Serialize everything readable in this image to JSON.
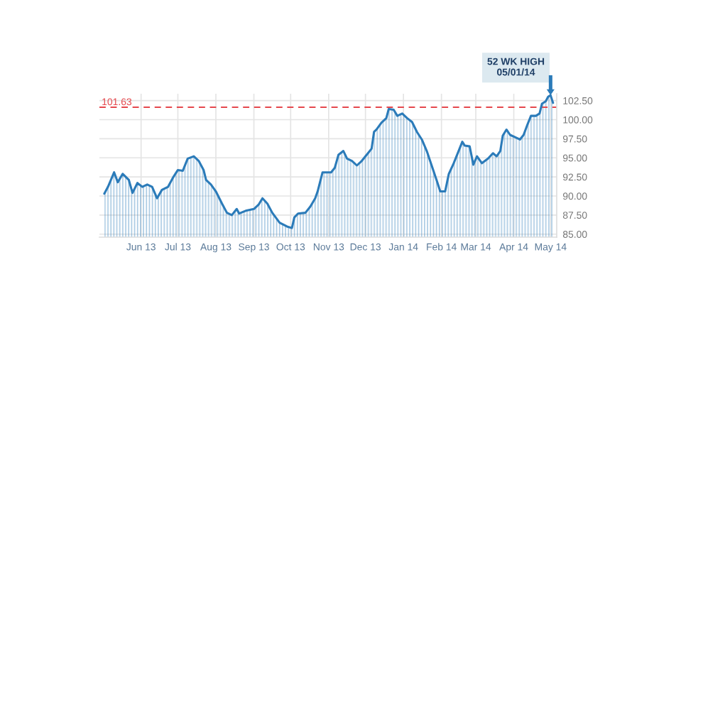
{
  "chart_data": {
    "type": "area",
    "x": [
      "2013-05-02",
      "2013-05-05",
      "2013-05-10",
      "2013-05-13",
      "2013-05-17",
      "2013-05-22",
      "2013-05-25",
      "2013-05-29",
      "2013-06-02",
      "2013-06-06",
      "2013-06-10",
      "2013-06-14",
      "2013-06-18",
      "2013-06-23",
      "2013-06-27",
      "2013-07-01",
      "2013-07-05",
      "2013-07-09",
      "2013-07-14",
      "2013-07-18",
      "2013-07-22",
      "2013-07-24",
      "2013-07-28",
      "2013-08-01",
      "2013-08-06",
      "2013-08-10",
      "2013-08-14",
      "2013-08-18",
      "2013-08-20",
      "2013-08-26",
      "2013-09-01",
      "2013-09-05",
      "2013-09-08",
      "2013-09-12",
      "2013-09-16",
      "2013-09-22",
      "2013-09-28",
      "2013-10-02",
      "2013-10-04",
      "2013-10-07",
      "2013-10-13",
      "2013-10-17",
      "2013-10-21",
      "2013-10-23",
      "2013-10-27",
      "2013-10-30",
      "2013-11-03",
      "2013-11-06",
      "2013-11-09",
      "2013-11-13",
      "2013-11-16",
      "2013-11-20",
      "2013-11-24",
      "2013-11-28",
      "2013-12-02",
      "2013-12-06",
      "2013-12-08",
      "2013-12-10",
      "2013-12-14",
      "2013-12-18",
      "2013-12-20",
      "2013-12-24",
      "2013-12-27",
      "2013-12-31",
      "2014-01-04",
      "2014-01-08",
      "2014-01-12",
      "2014-01-16",
      "2014-01-20",
      "2014-01-24",
      "2014-01-28",
      "2014-01-31",
      "2014-02-04",
      "2014-02-07",
      "2014-02-11",
      "2014-02-15",
      "2014-02-18",
      "2014-02-20",
      "2014-02-24",
      "2014-02-27",
      "2014-03-02",
      "2014-03-06",
      "2014-03-11",
      "2014-03-15",
      "2014-03-18",
      "2014-03-21",
      "2014-03-23",
      "2014-03-26",
      "2014-03-29",
      "2014-04-02",
      "2014-04-06",
      "2014-04-09",
      "2014-04-12",
      "2014-04-15",
      "2014-04-19",
      "2014-04-22",
      "2014-04-24",
      "2014-04-27",
      "2014-04-29",
      "2014-05-01",
      "2014-05-03"
    ],
    "series": [
      {
        "color": "#2b7bb9",
        "values": [
          90.3,
          91.2,
          93.1,
          91.8,
          92.9,
          92.1,
          90.4,
          91.7,
          91.2,
          91.5,
          91.2,
          89.7,
          90.8,
          91.2,
          92.4,
          93.4,
          93.3,
          94.9,
          95.2,
          94.6,
          93.4,
          92.1,
          91.5,
          90.6,
          89.0,
          87.8,
          87.5,
          88.3,
          87.7,
          88.1,
          88.3,
          88.9,
          89.7,
          89.0,
          87.8,
          86.5,
          86.0,
          85.8,
          87.2,
          87.7,
          87.8,
          88.6,
          89.7,
          90.6,
          93.1,
          93.1,
          93.1,
          93.7,
          95.4,
          95.9,
          94.9,
          94.6,
          94.0,
          94.6,
          95.4,
          96.2,
          98.4,
          98.7,
          99.6,
          100.2,
          101.4,
          101.3,
          100.5,
          100.8,
          100.2,
          99.7,
          98.4,
          97.4,
          95.9,
          94.0,
          92.1,
          90.6,
          90.6,
          92.9,
          94.3,
          95.9,
          97.1,
          96.6,
          96.5,
          94.1,
          95.2,
          94.3,
          94.9,
          95.6,
          95.2,
          95.9,
          97.9,
          98.7,
          98.0,
          97.7,
          97.4,
          98.0,
          99.3,
          100.5,
          100.5,
          100.8,
          102.1,
          102.4,
          103.0,
          103.2,
          102.2
        ]
      }
    ],
    "xlim": [
      "2013-04-28",
      "2014-05-06"
    ],
    "xticks": [
      {
        "value": "2013-06-01",
        "label": "Jun 13"
      },
      {
        "value": "2013-07-01",
        "label": "Jul 13"
      },
      {
        "value": "2013-08-01",
        "label": "Aug 13"
      },
      {
        "value": "2013-09-01",
        "label": "Sep 13"
      },
      {
        "value": "2013-10-01",
        "label": "Oct 13"
      },
      {
        "value": "2013-11-01",
        "label": "Nov 13"
      },
      {
        "value": "2013-12-01",
        "label": "Dec 13"
      },
      {
        "value": "2014-01-01",
        "label": "Jan 14"
      },
      {
        "value": "2014-02-01",
        "label": "Feb 14"
      },
      {
        "value": "2014-03-01",
        "label": "Mar 14"
      },
      {
        "value": "2014-04-01",
        "label": "Apr 14"
      },
      {
        "value": "2014-05-01",
        "label": "May 14"
      }
    ],
    "ylim": [
      84.6,
      103.4
    ],
    "yticks": [
      {
        "value": 85,
        "label": "85.00"
      },
      {
        "value": 87.5,
        "label": "87.50"
      },
      {
        "value": 90,
        "label": "90.00"
      },
      {
        "value": 92.5,
        "label": "92.50"
      },
      {
        "value": 95,
        "label": "95.00"
      },
      {
        "value": 97.5,
        "label": "97.50"
      },
      {
        "value": 100,
        "label": "100.00"
      },
      {
        "value": 102.5,
        "label": "102.50"
      }
    ],
    "ref_lines": [
      {
        "axis": "y",
        "value": 101.63,
        "label": "101.63",
        "color": "#e5484d",
        "line_style": "dashed"
      }
    ],
    "annotations": [
      {
        "text": "52 WK HIGH\n05/01/14",
        "x": "2014-05-01",
        "y": 103.2
      }
    ],
    "grid": true,
    "marker": "none",
    "line_style": "solid"
  }
}
